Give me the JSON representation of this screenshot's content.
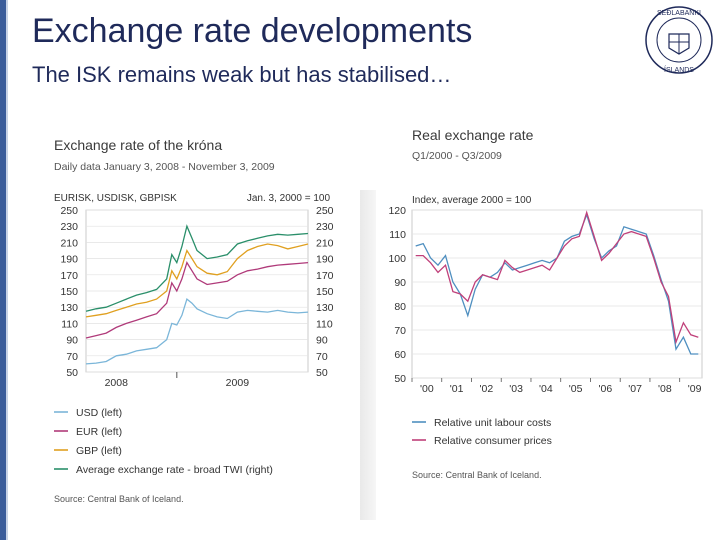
{
  "slide": {
    "title": "Exchange rate developments",
    "subtitle": "The ISK remains weak but has stabilised…",
    "logo_text": "SEÐLABANKI ÍSLANDS",
    "accent": "#3b5c9a",
    "title_color": "#1f2a5a"
  },
  "chart_data": [
    {
      "type": "line",
      "title": "Exchange rate of the króna",
      "subtitle": "Daily data January 3, 2008 - November 3, 2009",
      "left_axis_title": "EURISK, USDISK, GBPISK",
      "right_axis_title": "Jan. 3, 2000 = 100",
      "yticks_left": [
        250,
        230,
        210,
        190,
        170,
        150,
        130,
        110,
        90,
        70,
        50
      ],
      "yticks_right": [
        250,
        230,
        210,
        190,
        170,
        150,
        130,
        110,
        90,
        70,
        50
      ],
      "ylim": [
        50,
        250
      ],
      "xlim": [
        0,
        22
      ],
      "xtick_labels": [
        "2008",
        "2009"
      ],
      "xtick_positions": [
        3,
        15
      ],
      "grid": true,
      "legend_position": "bottom",
      "source": "Source: Central Bank of Iceland.",
      "series": [
        {
          "name": "USD (left)",
          "color": "#7bb6d9",
          "x": [
            0,
            1,
            2,
            3,
            4,
            5,
            6,
            7,
            8,
            8.5,
            9,
            9.5,
            10,
            10.5,
            11,
            12,
            13,
            14,
            15,
            16,
            17,
            18,
            19,
            20,
            21,
            22
          ],
          "y": [
            60,
            61,
            63,
            70,
            72,
            76,
            78,
            80,
            90,
            110,
            108,
            120,
            140,
            135,
            128,
            122,
            118,
            116,
            124,
            126,
            125,
            124,
            126,
            124,
            123,
            124
          ]
        },
        {
          "name": "EUR (left)",
          "color": "#b03a7a",
          "x": [
            0,
            1,
            2,
            3,
            4,
            5,
            6,
            7,
            8,
            8.5,
            9,
            9.5,
            10,
            10.5,
            11,
            12,
            13,
            14,
            15,
            16,
            17,
            18,
            19,
            20,
            21,
            22
          ],
          "y": [
            92,
            95,
            98,
            105,
            110,
            114,
            118,
            122,
            135,
            160,
            150,
            165,
            185,
            175,
            165,
            158,
            160,
            162,
            170,
            175,
            177,
            180,
            182,
            183,
            184,
            185
          ]
        },
        {
          "name": "GBP (left)",
          "color": "#e0a020",
          "x": [
            0,
            1,
            2,
            3,
            4,
            5,
            6,
            7,
            8,
            8.5,
            9,
            9.5,
            10,
            10.5,
            11,
            12,
            13,
            14,
            15,
            16,
            17,
            18,
            19,
            20,
            21,
            22
          ],
          "y": [
            118,
            120,
            122,
            126,
            130,
            134,
            136,
            140,
            150,
            175,
            165,
            180,
            200,
            190,
            180,
            172,
            170,
            174,
            190,
            200,
            205,
            208,
            206,
            202,
            205,
            208
          ]
        },
        {
          "name": "Average exchange rate - broad TWI (right)",
          "color": "#2a8f6a",
          "x": [
            0,
            1,
            2,
            3,
            4,
            5,
            6,
            7,
            8,
            8.5,
            9,
            9.5,
            10,
            10.5,
            11,
            12,
            13,
            14,
            15,
            16,
            17,
            18,
            19,
            20,
            21,
            22
          ],
          "y": [
            125,
            128,
            130,
            135,
            140,
            145,
            148,
            152,
            165,
            195,
            185,
            205,
            230,
            215,
            200,
            190,
            192,
            195,
            208,
            212,
            215,
            218,
            220,
            219,
            220,
            221
          ]
        }
      ]
    },
    {
      "type": "line",
      "title": "Real  exchange rate",
      "subtitle": "Q1/2000 - Q3/2009",
      "y_axis_title": "Index, average 2000 = 100",
      "yticks": [
        120,
        110,
        100,
        90,
        80,
        70,
        60,
        50
      ],
      "ylim": [
        50,
        120
      ],
      "xlim": [
        2000,
        2009.75
      ],
      "xtick_labels": [
        "'00",
        "'01",
        "'02",
        "'03",
        "'04",
        "'05",
        "'06",
        "'07",
        "'08",
        "'09"
      ],
      "grid": true,
      "legend_position": "bottom",
      "source": "Source: Central Bank of Iceland.",
      "series": [
        {
          "name": "Relative unit labour costs",
          "color": "#4f8fc0",
          "x": [
            2000,
            2000.25,
            2000.5,
            2000.75,
            2001,
            2001.25,
            2001.5,
            2001.75,
            2002,
            2002.25,
            2002.5,
            2002.75,
            2003,
            2003.25,
            2003.5,
            2003.75,
            2004,
            2004.25,
            2004.5,
            2004.75,
            2005,
            2005.25,
            2005.5,
            2005.75,
            2006,
            2006.25,
            2006.5,
            2006.75,
            2007,
            2007.25,
            2007.5,
            2007.75,
            2008,
            2008.25,
            2008.5,
            2008.75,
            2009,
            2009.25,
            2009.5
          ],
          "y": [
            105,
            106,
            100,
            97,
            101,
            90,
            85,
            76,
            87,
            93,
            92,
            94,
            98,
            95,
            96,
            97,
            98,
            99,
            98,
            100,
            107,
            109,
            110,
            118,
            108,
            100,
            103,
            105,
            113,
            112,
            111,
            110,
            101,
            91,
            82,
            62,
            67,
            60,
            60
          ]
        },
        {
          "name": "Relative consumer prices",
          "color": "#c0407a",
          "x": [
            2000,
            2000.25,
            2000.5,
            2000.75,
            2001,
            2001.25,
            2001.5,
            2001.75,
            2002,
            2002.25,
            2002.5,
            2002.75,
            2003,
            2003.25,
            2003.5,
            2003.75,
            2004,
            2004.25,
            2004.5,
            2004.75,
            2005,
            2005.25,
            2005.5,
            2005.75,
            2006,
            2006.25,
            2006.5,
            2006.75,
            2007,
            2007.25,
            2007.5,
            2007.75,
            2008,
            2008.25,
            2008.5,
            2008.75,
            2009,
            2009.25,
            2009.5
          ],
          "y": [
            101,
            101,
            98,
            94,
            97,
            86,
            85,
            82,
            90,
            93,
            92,
            91,
            99,
            96,
            94,
            95,
            96,
            97,
            95,
            100,
            105,
            108,
            109,
            119,
            109,
            99,
            102,
            106,
            110,
            111,
            110,
            109,
            100,
            90,
            84,
            65,
            73,
            68,
            67
          ]
        }
      ]
    }
  ]
}
